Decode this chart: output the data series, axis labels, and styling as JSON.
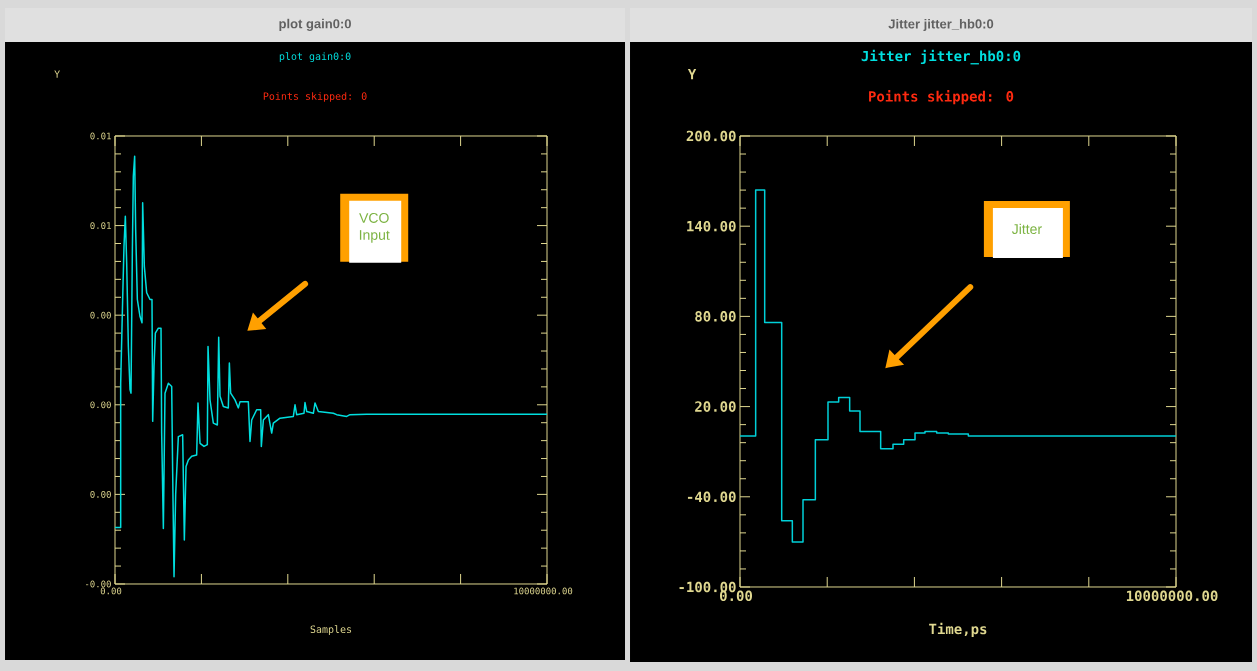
{
  "chart_data": [
    {
      "type": "line",
      "title": "plot gain0:0",
      "subtitle": "Points skipped: 0",
      "xlabel": "Samples",
      "ylabel": "Y",
      "color": "#00dede",
      "x": [
        0,
        131000,
        131000,
        177000,
        208000,
        239000,
        270000,
        309000,
        347000,
        370000,
        401000,
        424000,
        455000,
        478000,
        517000,
        579000,
        625000,
        640000,
        679000,
        733000,
        810000,
        856000,
        872000,
        903000,
        934000,
        1003000,
        1065000,
        1080000,
        1119000,
        1157000,
        1235000,
        1312000,
        1335000,
        1366000,
        1404000,
        1466000,
        1566000,
        1605000,
        1644000,
        1698000,
        1775000,
        1890000,
        1921000,
        1968000,
        2060000,
        2137000,
        2153000,
        2199000,
        2276000,
        2369000,
        2400000,
        2431000,
        2508000,
        2623000,
        2647000,
        2677000,
        2778000,
        2855000,
        2894000,
        3086000,
        3125000,
        3164000,
        3279000,
        3372000,
        3387000,
        3434000,
        3549000,
        3627000,
        3665000,
        3819000,
        4128000,
        4167000,
        4205000,
        4375000,
        4398000,
        4437000,
        4591000,
        4630000,
        4707000,
        5054000,
        5131000,
        5363000,
        5440000,
        5826000,
        10000000
      ],
      "values": [
        -0.00074,
        -0.00074,
        0.00248,
        0.00435,
        0.00554,
        0.00621,
        0.00517,
        0.0033,
        0.00234,
        0.00226,
        0.00539,
        0.0071,
        0.00755,
        0.00591,
        0.00435,
        0.00397,
        0.00383,
        0.00651,
        0.00509,
        0.0045,
        0.00435,
        0.00435,
        0.00163,
        0.00286,
        0.0036,
        0.00371,
        0.00371,
        0.00137,
        -0.00076,
        0.00226,
        0.00248,
        0.00241,
        0.00047,
        -0.00184,
        0.0,
        0.00129,
        0.00133,
        -0.00102,
        0.00062,
        0.00077,
        0.00085,
        0.00088,
        0.00204,
        0.00114,
        0.00107,
        0.00111,
        0.0033,
        0.00211,
        0.00159,
        0.00155,
        0.00351,
        0.00219,
        0.00196,
        0.00193,
        0.00293,
        0.00226,
        0.00211,
        0.00193,
        0.00207,
        0.00207,
        0.00118,
        0.00166,
        0.00189,
        0.00189,
        0.00107,
        0.00166,
        0.00178,
        0.00137,
        0.00159,
        0.0017,
        0.00174,
        0.002,
        0.00178,
        0.00181,
        0.00205,
        0.00185,
        0.00181,
        0.00204,
        0.00185,
        0.00181,
        0.00178,
        0.00174,
        0.00178,
        0.00179,
        0.00179
      ],
      "xlim": [
        0,
        10000000
      ],
      "ylim": [
        -0.002,
        0.008
      ],
      "xticks": [
        {
          "value": 0,
          "label": "0.00"
        },
        {
          "value": 2000000,
          "label": null
        },
        {
          "value": 4000000,
          "label": null
        },
        {
          "value": 6000000,
          "label": null
        },
        {
          "value": 8000000,
          "label": null
        },
        {
          "value": 10000000,
          "label": "10000000.00"
        }
      ],
      "yticks": [
        {
          "value": -0.002,
          "label": "-0.00"
        },
        {
          "value": 0,
          "label": "0.00"
        },
        {
          "value": 0.002,
          "label": "0.00"
        },
        {
          "value": 0.004,
          "label": "0.00"
        },
        {
          "value": 0.006,
          "label": "0.01"
        },
        {
          "value": 0.008,
          "label": "0.01"
        }
      ],
      "grid": false,
      "marker": "none",
      "line_style": "solid",
      "annotations": [
        "plot gain0:0",
        "VCO Input"
      ]
    },
    {
      "type": "step",
      "title": "Jitter jitter_hb0:0",
      "subtitle": "Points skipped: 0",
      "xlabel": "Time,ps",
      "ylabel": "Y",
      "color": "#00d0d8",
      "x": [
        0,
        359000,
        566000,
        956000,
        1200000,
        1445000,
        1728000,
        2018000,
        2263000,
        2515000,
        2752000,
        3226000,
        3509000,
        3754000,
        4014000,
        4243000,
        4511000,
        4778000,
        5237000,
        10000000
      ],
      "values": [
        0.5,
        164,
        76,
        -56,
        -70,
        -42,
        -2,
        23,
        26,
        17,
        3.5,
        -8,
        -5,
        -2,
        2.4,
        3.5,
        2.4,
        1.7,
        0.5,
        0.5
      ],
      "xlim": [
        0,
        10000000
      ],
      "ylim": [
        -100,
        200
      ],
      "xticks": [
        {
          "value": 0,
          "label": "0.00"
        },
        {
          "value": 2000000,
          "label": null
        },
        {
          "value": 4000000,
          "label": null
        },
        {
          "value": 6000000,
          "label": null
        },
        {
          "value": 8000000,
          "label": null
        },
        {
          "value": 10000000,
          "label": "10000000.00"
        }
      ],
      "yticks": [
        {
          "value": -100,
          "label": "-100.00"
        },
        {
          "value": -40,
          "label": "-40.00"
        },
        {
          "value": 20,
          "label": "20.00"
        },
        {
          "value": 80,
          "label": "80.00"
        },
        {
          "value": 140,
          "label": "140.00"
        },
        {
          "value": 200,
          "label": "200.00"
        }
      ],
      "grid": false,
      "marker": "none",
      "line_style": "solid",
      "annotations": [
        "Jitter jitter_hb0:0",
        "Jitter"
      ]
    }
  ]
}
